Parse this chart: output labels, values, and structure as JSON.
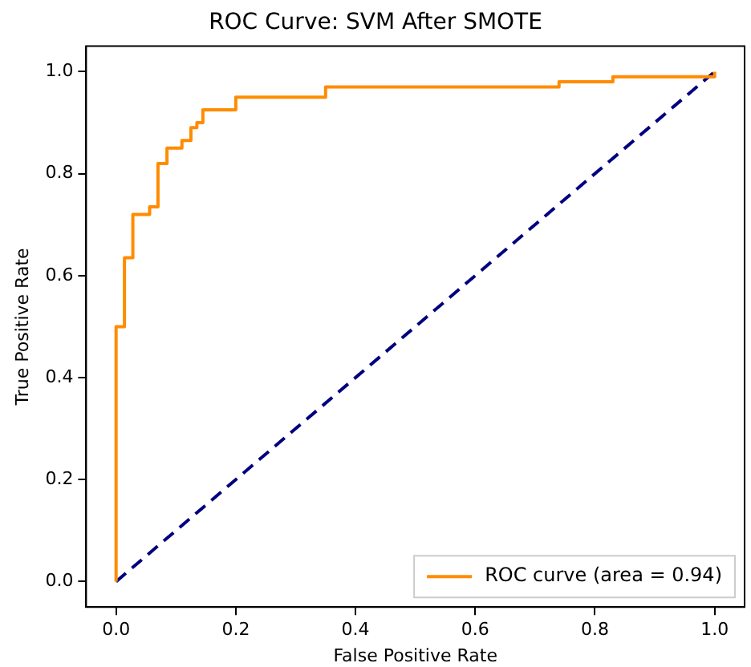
{
  "chart_data": {
    "type": "line",
    "title": "ROC Curve: SVM After SMOTE",
    "xlabel": "False Positive Rate",
    "ylabel": "True Positive Rate",
    "xlim": [
      -0.05,
      1.05
    ],
    "ylim": [
      -0.05,
      1.05
    ],
    "xticks": [
      {
        "value": 0,
        "label": "0.0"
      },
      {
        "value": 0.2,
        "label": "0.2"
      },
      {
        "value": 0.4,
        "label": "0.4"
      },
      {
        "value": 0.6,
        "label": "0.6"
      },
      {
        "value": 0.8,
        "label": "0.8"
      },
      {
        "value": 1,
        "label": "1.0"
      }
    ],
    "yticks": [
      {
        "value": 0,
        "label": "0.0"
      },
      {
        "value": 0.2,
        "label": "0.2"
      },
      {
        "value": 0.4,
        "label": "0.4"
      },
      {
        "value": 0.6,
        "label": "0.6"
      },
      {
        "value": 0.8,
        "label": "0.8"
      },
      {
        "value": 1,
        "label": "1.0"
      }
    ],
    "grid": false,
    "legend": "bottom right",
    "marker": "none",
    "series": [
      {
        "name": "ROC curve (area = 0.94)",
        "color": "#ff8c00",
        "line_style": "solid",
        "x": [
          0,
          0,
          0.014,
          0.014,
          0.028,
          0.028,
          0.056,
          0.056,
          0.07,
          0.07,
          0.085,
          0.085,
          0.11,
          0.11,
          0.125,
          0.125,
          0.135,
          0.135,
          0.145,
          0.145,
          0.2,
          0.2,
          0.35,
          0.35,
          0.74,
          0.74,
          0.83,
          0.83,
          1,
          1
        ],
        "values": [
          0,
          0.5,
          0.5,
          0.635,
          0.635,
          0.72,
          0.72,
          0.735,
          0.735,
          0.82,
          0.82,
          0.85,
          0.85,
          0.865,
          0.865,
          0.89,
          0.89,
          0.9,
          0.9,
          0.925,
          0.925,
          0.95,
          0.95,
          0.97,
          0.97,
          0.98,
          0.98,
          0.99,
          0.99,
          1
        ]
      },
      {
        "color": "#000080",
        "line_style": "dashed",
        "x": [
          0,
          1
        ],
        "values": [
          0,
          1
        ]
      }
    ]
  }
}
